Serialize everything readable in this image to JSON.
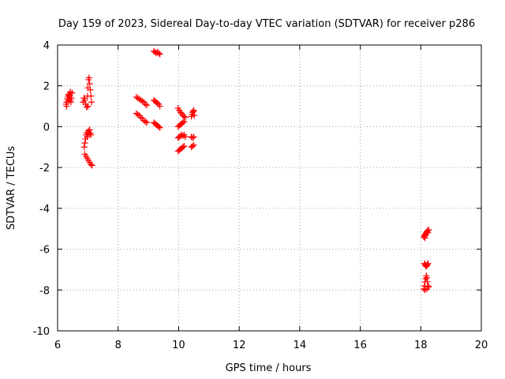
{
  "chart_data": {
    "type": "scatter",
    "title": "Day 159 of 2023, Sidereal Day-to-day VTEC variation (SDTVAR) for receiver p286",
    "xlabel": "GPS time / hours",
    "ylabel": "SDTVAR / TECUs",
    "xlim": [
      6,
      20
    ],
    "ylim": [
      -10,
      4
    ],
    "xticks": [
      6,
      8,
      10,
      12,
      14,
      16,
      18,
      20
    ],
    "yticks": [
      -10,
      -8,
      -6,
      -4,
      -2,
      0,
      2,
      4
    ],
    "grid": true,
    "marker": "plus",
    "series": [
      {
        "color": "#ff0000",
        "points": [
          [
            6.28,
            1.1
          ],
          [
            6.3,
            1.2
          ],
          [
            6.32,
            1.35
          ],
          [
            6.34,
            1.45
          ],
          [
            6.36,
            1.55
          ],
          [
            6.38,
            1.6
          ],
          [
            6.4,
            1.5
          ],
          [
            6.42,
            1.3
          ],
          [
            6.44,
            1.2
          ],
          [
            6.46,
            1.4
          ],
          [
            6.48,
            1.65
          ],
          [
            6.3,
            1.0
          ],
          [
            6.36,
            1.25
          ],
          [
            6.42,
            1.7
          ],
          [
            6.84,
            1.2
          ],
          [
            6.87,
            1.4
          ],
          [
            6.9,
            1.3
          ],
          [
            6.93,
            1.1
          ],
          [
            6.96,
            0.95
          ],
          [
            6.99,
            1.5
          ],
          [
            7.0,
            1.9
          ],
          [
            7.02,
            2.3
          ],
          [
            7.04,
            2.4
          ],
          [
            7.06,
            2.1
          ],
          [
            7.08,
            1.8
          ],
          [
            7.1,
            1.5
          ],
          [
            7.12,
            1.2
          ],
          [
            7.0,
            1.0
          ],
          [
            6.88,
            -1.0
          ],
          [
            6.9,
            -0.8
          ],
          [
            6.92,
            -0.6
          ],
          [
            6.94,
            -0.4
          ],
          [
            6.96,
            -0.3
          ],
          [
            6.98,
            -0.5
          ],
          [
            7.0,
            -0.3
          ],
          [
            7.02,
            -0.2
          ],
          [
            7.04,
            -0.35
          ],
          [
            7.06,
            -0.15
          ],
          [
            7.08,
            -0.3
          ],
          [
            7.1,
            -0.4
          ],
          [
            6.9,
            -1.35
          ],
          [
            6.94,
            -1.45
          ],
          [
            6.98,
            -1.55
          ],
          [
            7.02,
            -1.65
          ],
          [
            7.06,
            -1.75
          ],
          [
            7.1,
            -1.85
          ],
          [
            7.14,
            -1.9
          ],
          [
            8.6,
            1.45
          ],
          [
            8.65,
            1.4
          ],
          [
            8.7,
            1.35
          ],
          [
            8.75,
            1.3
          ],
          [
            8.8,
            1.25
          ],
          [
            8.85,
            1.2
          ],
          [
            8.9,
            1.1
          ],
          [
            8.95,
            1.05
          ],
          [
            8.6,
            0.65
          ],
          [
            8.65,
            0.6
          ],
          [
            8.7,
            0.55
          ],
          [
            8.75,
            0.45
          ],
          [
            8.8,
            0.4
          ],
          [
            8.85,
            0.3
          ],
          [
            8.9,
            0.25
          ],
          [
            8.95,
            0.2
          ],
          [
            9.18,
            3.7
          ],
          [
            9.22,
            3.65
          ],
          [
            9.26,
            3.6
          ],
          [
            9.3,
            3.65
          ],
          [
            9.34,
            3.6
          ],
          [
            9.38,
            3.55
          ],
          [
            9.18,
            1.3
          ],
          [
            9.22,
            1.25
          ],
          [
            9.26,
            1.2
          ],
          [
            9.3,
            1.15
          ],
          [
            9.34,
            1.1
          ],
          [
            9.38,
            1.0
          ],
          [
            9.18,
            0.2
          ],
          [
            9.22,
            0.15
          ],
          [
            9.26,
            0.1
          ],
          [
            9.3,
            0.05
          ],
          [
            9.34,
            0.0
          ],
          [
            9.38,
            -0.05
          ],
          [
            9.98,
            0.9
          ],
          [
            10.02,
            0.8
          ],
          [
            10.06,
            0.7
          ],
          [
            10.1,
            0.65
          ],
          [
            10.14,
            0.55
          ],
          [
            10.18,
            0.5
          ],
          [
            10.22,
            0.45
          ],
          [
            9.98,
            0.0
          ],
          [
            10.02,
            0.05
          ],
          [
            10.06,
            0.1
          ],
          [
            10.1,
            0.15
          ],
          [
            10.14,
            0.2
          ],
          [
            10.18,
            0.25
          ],
          [
            9.98,
            -0.55
          ],
          [
            10.02,
            -0.5
          ],
          [
            10.06,
            -0.45
          ],
          [
            10.1,
            -0.4
          ],
          [
            10.14,
            -0.45
          ],
          [
            10.18,
            -0.4
          ],
          [
            10.22,
            -0.5
          ],
          [
            9.98,
            -1.2
          ],
          [
            10.02,
            -1.15
          ],
          [
            10.06,
            -1.1
          ],
          [
            10.1,
            -1.05
          ],
          [
            10.14,
            -1.0
          ],
          [
            10.18,
            -0.95
          ],
          [
            10.42,
            0.5
          ],
          [
            10.44,
            0.6
          ],
          [
            10.46,
            0.7
          ],
          [
            10.48,
            0.75
          ],
          [
            10.5,
            0.8
          ],
          [
            10.52,
            0.55
          ],
          [
            10.42,
            -0.5
          ],
          [
            10.46,
            -0.55
          ],
          [
            10.5,
            -0.5
          ],
          [
            10.42,
            -1.0
          ],
          [
            10.46,
            -0.95
          ],
          [
            10.5,
            -0.9
          ],
          [
            18.1,
            -5.4
          ],
          [
            18.12,
            -5.35
          ],
          [
            18.14,
            -5.3
          ],
          [
            18.16,
            -5.25
          ],
          [
            18.18,
            -5.2
          ],
          [
            18.2,
            -5.15
          ],
          [
            18.22,
            -5.1
          ],
          [
            18.24,
            -5.2
          ],
          [
            18.26,
            -5.05
          ],
          [
            18.14,
            -5.45
          ],
          [
            18.12,
            -6.7
          ],
          [
            18.14,
            -6.75
          ],
          [
            18.16,
            -6.8
          ],
          [
            18.18,
            -6.85
          ],
          [
            18.2,
            -6.8
          ],
          [
            18.22,
            -6.75
          ],
          [
            18.24,
            -6.7
          ],
          [
            18.1,
            -7.95
          ],
          [
            18.12,
            -7.8
          ],
          [
            18.14,
            -7.6
          ],
          [
            18.16,
            -7.45
          ],
          [
            18.18,
            -7.3
          ],
          [
            18.2,
            -7.4
          ],
          [
            18.22,
            -7.6
          ],
          [
            18.24,
            -7.8
          ],
          [
            18.26,
            -7.85
          ],
          [
            18.14,
            -8.0
          ],
          [
            18.2,
            -7.95
          ]
        ]
      }
    ]
  }
}
